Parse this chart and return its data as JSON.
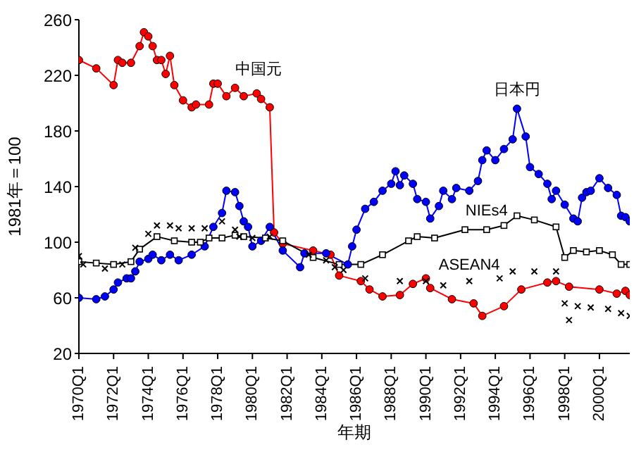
{
  "chart_data": {
    "type": "line",
    "xlabel": "年期",
    "ylabel": "1981年＝100",
    "ylim": [
      20,
      260
    ],
    "yticks": [
      20,
      60,
      100,
      140,
      180,
      220,
      260
    ],
    "categories": [
      "1970Q1",
      null,
      null,
      null,
      null,
      null,
      null,
      null,
      "1972Q1",
      null,
      null,
      null,
      null,
      null,
      null,
      null,
      "1974Q1",
      null,
      null,
      null,
      null,
      null,
      null,
      null,
      "1976Q1",
      null,
      null,
      null,
      null,
      null,
      null,
      null,
      "1978Q1",
      null,
      null,
      null,
      null,
      null,
      null,
      null,
      "1980Q1",
      null,
      null,
      null,
      null,
      null,
      null,
      null,
      "1982Q1",
      null,
      null,
      null,
      null,
      null,
      null,
      null,
      "1984Q1",
      null,
      null,
      null,
      null,
      null,
      null,
      null,
      "1986Q1",
      null,
      null,
      null,
      null,
      null,
      null,
      null,
      "1988Q1",
      null,
      null,
      null,
      null,
      null,
      null,
      null,
      "1990Q1",
      null,
      null,
      null,
      null,
      null,
      null,
      null,
      "1992Q1",
      null,
      null,
      null,
      null,
      null,
      null,
      null,
      "1994Q1",
      null,
      null,
      null,
      null,
      null,
      null,
      null,
      "1996Q1",
      null,
      null,
      null,
      null,
      null,
      null,
      null,
      "1998Q1",
      null,
      null,
      null,
      null,
      null,
      null,
      null,
      "2000Q1",
      null,
      null,
      null,
      null,
      null,
      null,
      null
    ],
    "grid": false,
    "legend": false,
    "line_style": "solid",
    "series": [
      {
        "name": "中国元",
        "color": "#ff0000",
        "marker": "circle",
        "values": [
          231,
          null,
          null,
          null,
          225,
          null,
          null,
          null,
          213,
          231,
          229,
          null,
          229,
          null,
          241,
          251,
          248,
          241,
          231,
          231,
          221,
          234,
          213,
          null,
          202,
          null,
          197,
          199,
          null,
          null,
          199,
          214,
          214,
          null,
          205,
          null,
          211,
          null,
          205,
          null,
          null,
          207,
          203,
          null,
          197,
          107,
          null,
          99,
          null,
          null,
          null,
          null,
          null,
          null,
          94,
          null,
          null,
          null,
          91,
          null,
          76,
          null,
          null,
          null,
          null,
          72,
          null,
          66,
          null,
          null,
          61,
          null,
          null,
          null,
          62,
          null,
          null,
          70,
          null,
          null,
          74,
          67,
          null,
          null,
          null,
          null,
          59,
          null,
          null,
          null,
          null,
          56,
          null,
          47,
          null,
          null,
          null,
          null,
          54,
          null,
          null,
          null,
          66,
          null,
          null,
          null,
          null,
          null,
          71,
          null,
          72,
          null,
          null,
          68,
          null,
          null,
          null,
          null,
          null,
          null,
          66,
          null,
          null,
          null,
          63,
          null,
          65,
          62
        ]
      },
      {
        "name": "日本円",
        "color": "#0000ff",
        "marker": "circle",
        "values": [
          60,
          null,
          null,
          null,
          59,
          null,
          61,
          null,
          66,
          71,
          null,
          74,
          74,
          79,
          86,
          null,
          88,
          91,
          null,
          87,
          null,
          91,
          null,
          87,
          null,
          null,
          91,
          null,
          null,
          97,
          null,
          111,
          null,
          121,
          137,
          null,
          136,
          126,
          115,
          111,
          97,
          null,
          101,
          null,
          111,
          null,
          null,
          94,
          null,
          null,
          null,
          82,
          92,
          null,
          null,
          null,
          null,
          92,
          null,
          null,
          null,
          null,
          84,
          97,
          109,
          null,
          124,
          null,
          129,
          null,
          137,
          null,
          142,
          151,
          141,
          148,
          null,
          142,
          131,
          null,
          129,
          117,
          null,
          126,
          137,
          null,
          131,
          139,
          null,
          null,
          137,
          null,
          144,
          159,
          166,
          null,
          159,
          null,
          167,
          null,
          174,
          196,
          null,
          176,
          154,
          null,
          149,
          null,
          142,
          131,
          137,
          null,
          127,
          null,
          117,
          115,
          132,
          136,
          137,
          null,
          146,
          null,
          139,
          null,
          134,
          119,
          118,
          115
        ]
      },
      {
        "name": "NIEs4",
        "color": "#000000",
        "marker": "square",
        "values": [
          86,
          null,
          null,
          null,
          85,
          null,
          null,
          null,
          84,
          null,
          null,
          null,
          86,
          null,
          95,
          null,
          null,
          null,
          104,
          null,
          null,
          null,
          101,
          null,
          null,
          null,
          100,
          null,
          100,
          null,
          103,
          null,
          null,
          103,
          null,
          null,
          105,
          null,
          104,
          null,
          null,
          null,
          null,
          103,
          null,
          null,
          null,
          101,
          null,
          null,
          null,
          null,
          null,
          null,
          89,
          null,
          null,
          null,
          null,
          null,
          84,
          null,
          null,
          null,
          null,
          84,
          null,
          null,
          null,
          null,
          91,
          null,
          null,
          null,
          null,
          null,
          101,
          null,
          104,
          null,
          null,
          null,
          103,
          null,
          null,
          null,
          null,
          null,
          null,
          109,
          null,
          null,
          null,
          null,
          109,
          null,
          null,
          null,
          112,
          null,
          null,
          119,
          null,
          null,
          null,
          116,
          null,
          null,
          null,
          null,
          111,
          null,
          89,
          null,
          94,
          null,
          null,
          93,
          null,
          null,
          94,
          null,
          null,
          91,
          null,
          84,
          null,
          84
        ]
      },
      {
        "name": "ASEAN4",
        "color": "#000000",
        "type": "scatter",
        "marker": "cross",
        "values": [
          90,
          84,
          null,
          null,
          null,
          null,
          81,
          null,
          null,
          null,
          84,
          null,
          null,
          96,
          null,
          null,
          106,
          null,
          112,
          null,
          null,
          112,
          null,
          110,
          null,
          null,
          110,
          null,
          null,
          110,
          null,
          null,
          null,
          115,
          null,
          null,
          109,
          104,
          null,
          null,
          103,
          null,
          null,
          null,
          104,
          null,
          null,
          null,
          null,
          null,
          null,
          null,
          null,
          91,
          null,
          null,
          null,
          87,
          null,
          82,
          null,
          80,
          null,
          null,
          null,
          null,
          74,
          null,
          null,
          null,
          null,
          null,
          null,
          null,
          72,
          null,
          null,
          null,
          null,
          null,
          72,
          null,
          null,
          null,
          69,
          null,
          null,
          null,
          null,
          null,
          72,
          null,
          null,
          null,
          null,
          null,
          null,
          74,
          null,
          null,
          79,
          null,
          null,
          null,
          null,
          79,
          null,
          null,
          null,
          null,
          79,
          null,
          56,
          44,
          null,
          54,
          null,
          null,
          53,
          null,
          null,
          null,
          52,
          null,
          null,
          49,
          null,
          47
        ]
      }
    ]
  }
}
